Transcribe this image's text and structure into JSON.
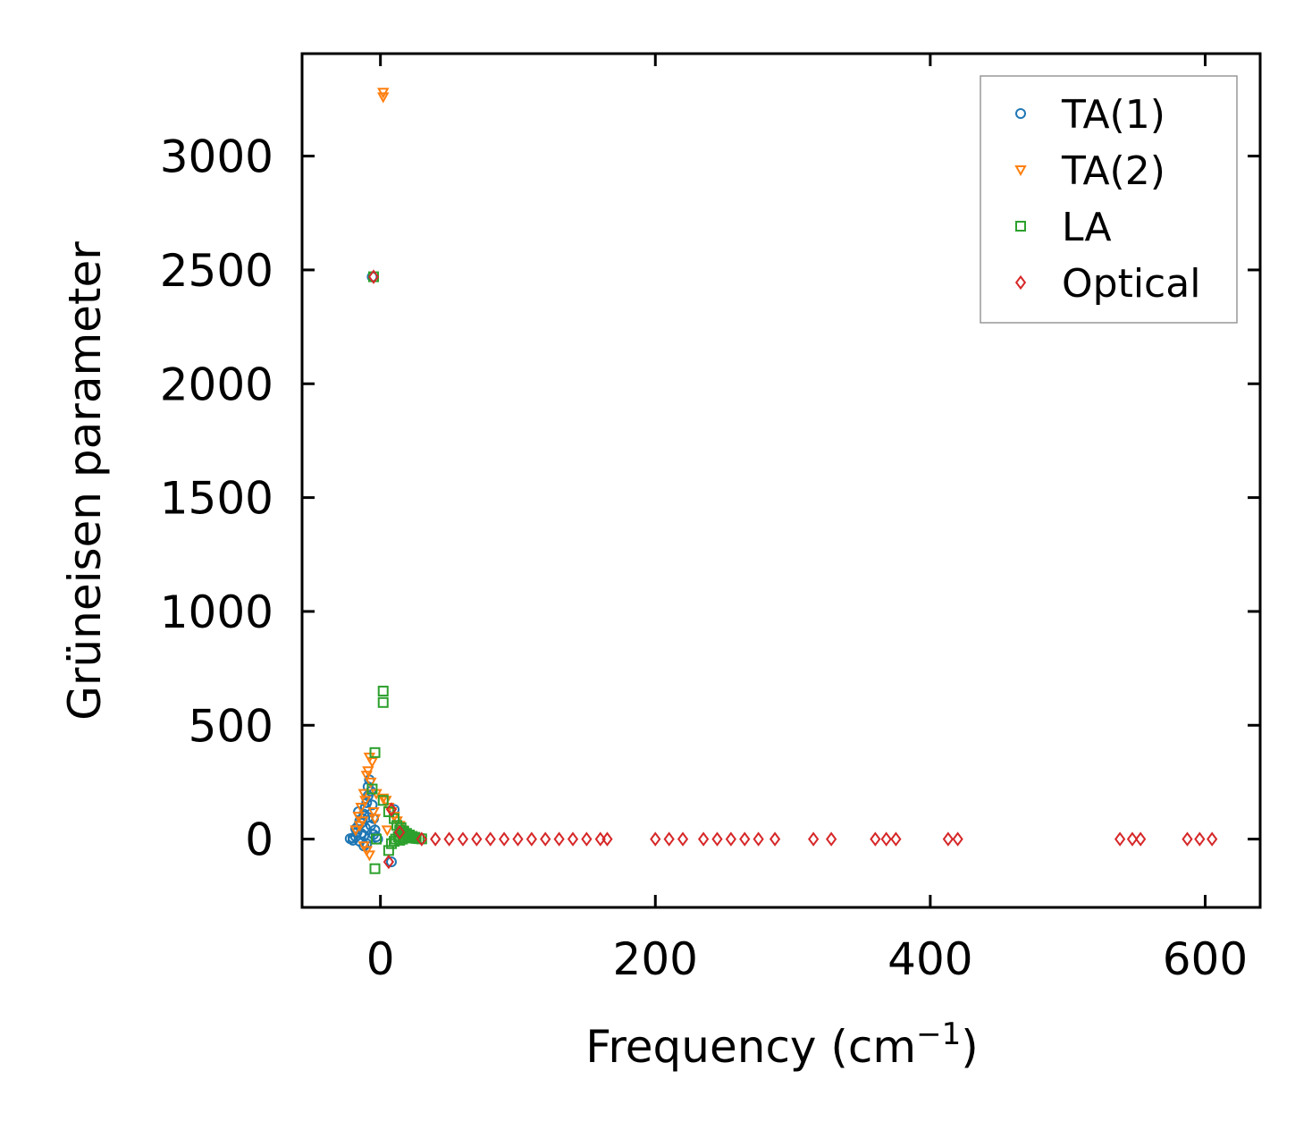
{
  "chart_data": {
    "type": "scatter",
    "title": "",
    "xlabel": "Frequency (cm",
    "xlabel_sup": "−1",
    "xlabel_suffix": ")",
    "ylabel": "Grüneisen parameter",
    "xlim": [
      -57,
      640
    ],
    "ylim": [
      -300,
      3450
    ],
    "xticks": [
      0,
      200,
      400,
      600
    ],
    "yticks": [
      0,
      500,
      1000,
      1500,
      2000,
      2500,
      3000
    ],
    "legend_position": "top-right",
    "grid": false,
    "series": [
      {
        "name": "TA(1)",
        "marker": "circle",
        "color": "#1f77b4",
        "points": [
          [
            -22,
            2
          ],
          [
            -20,
            5
          ],
          [
            -18,
            10
          ],
          [
            -17,
            30
          ],
          [
            -16,
            60
          ],
          [
            -15,
            80
          ],
          [
            -14,
            25
          ],
          [
            -13,
            90
          ],
          [
            -12,
            110
          ],
          [
            -11,
            140
          ],
          [
            -10,
            160
          ],
          [
            -9,
            190
          ],
          [
            -9,
            230
          ],
          [
            -8,
            260
          ],
          [
            -7,
            210
          ],
          [
            -6,
            150
          ],
          [
            -5,
            90
          ],
          [
            -4,
            40
          ],
          [
            -3,
            10
          ],
          [
            -2,
            0
          ],
          [
            -15,
            -10
          ],
          [
            -12,
            -30
          ],
          [
            -10,
            -20
          ],
          [
            -8,
            5
          ],
          [
            -20,
            -5
          ],
          [
            -18,
            45
          ],
          [
            -16,
            120
          ],
          [
            -14,
            70
          ],
          [
            -11,
            50
          ],
          [
            -6,
            2470
          ],
          [
            10,
            130
          ],
          [
            8,
            -100
          ],
          [
            -12,
            15
          ],
          [
            -9,
            95
          ],
          [
            -7,
            60
          ],
          [
            -5,
            20
          ]
        ]
      },
      {
        "name": "TA(2)",
        "marker": "triangle-down",
        "color": "#ff7f0e",
        "points": [
          [
            2,
            3280
          ],
          [
            2,
            3260
          ],
          [
            -8,
            360
          ],
          [
            -6,
            340
          ],
          [
            -9,
            300
          ],
          [
            -10,
            280
          ],
          [
            -7,
            250
          ],
          [
            -12,
            200
          ],
          [
            -11,
            170
          ],
          [
            -14,
            140
          ],
          [
            -16,
            100
          ],
          [
            -13,
            80
          ],
          [
            -5,
            120
          ],
          [
            -4,
            90
          ],
          [
            -15,
            60
          ],
          [
            -18,
            40
          ],
          [
            -12,
            -30
          ],
          [
            -10,
            -50
          ],
          [
            -8,
            -70
          ],
          [
            2,
            180
          ],
          [
            4,
            170
          ],
          [
            6,
            140
          ],
          [
            8,
            120
          ],
          [
            10,
            100
          ],
          [
            12,
            80
          ],
          [
            14,
            60
          ],
          [
            16,
            40
          ],
          [
            18,
            20
          ],
          [
            5,
            40
          ],
          [
            20,
            10
          ],
          [
            -3,
            200
          ]
        ]
      },
      {
        "name": "LA",
        "marker": "square",
        "color": "#2ca02c",
        "points": [
          [
            2,
            650
          ],
          [
            2,
            600
          ],
          [
            -4,
            380
          ],
          [
            -6,
            220
          ],
          [
            2,
            170
          ],
          [
            6,
            120
          ],
          [
            10,
            90
          ],
          [
            12,
            60
          ],
          [
            14,
            40
          ],
          [
            16,
            30
          ],
          [
            18,
            20
          ],
          [
            20,
            15
          ],
          [
            22,
            10
          ],
          [
            24,
            5
          ],
          [
            26,
            3
          ],
          [
            28,
            2
          ],
          [
            30,
            1
          ],
          [
            15,
            50
          ],
          [
            17,
            35
          ],
          [
            19,
            25
          ],
          [
            21,
            18
          ],
          [
            23,
            12
          ],
          [
            25,
            8
          ],
          [
            13,
            10
          ],
          [
            -4,
            -130
          ],
          [
            -3,
            0
          ],
          [
            6,
            -50
          ],
          [
            8,
            -20
          ],
          [
            10,
            -10
          ],
          [
            11,
            0
          ],
          [
            -5,
            2470
          ],
          [
            14,
            -5
          ],
          [
            16,
            0
          ],
          [
            18,
            5
          ],
          [
            20,
            8
          ]
        ]
      },
      {
        "name": "Optical",
        "marker": "diamond",
        "color": "#d62728",
        "points": [
          [
            30,
            0
          ],
          [
            40,
            0
          ],
          [
            50,
            0
          ],
          [
            60,
            0
          ],
          [
            70,
            0
          ],
          [
            80,
            0
          ],
          [
            90,
            0
          ],
          [
            100,
            0
          ],
          [
            110,
            0
          ],
          [
            120,
            0
          ],
          [
            130,
            0
          ],
          [
            140,
            0
          ],
          [
            150,
            0
          ],
          [
            160,
            0
          ],
          [
            165,
            0
          ],
          [
            200,
            0
          ],
          [
            210,
            0
          ],
          [
            220,
            0
          ],
          [
            235,
            0
          ],
          [
            245,
            0
          ],
          [
            255,
            0
          ],
          [
            265,
            0
          ],
          [
            275,
            0
          ],
          [
            287,
            0
          ],
          [
            315,
            0
          ],
          [
            328,
            0
          ],
          [
            360,
            0
          ],
          [
            368,
            0
          ],
          [
            375,
            0
          ],
          [
            413,
            0
          ],
          [
            420,
            0
          ],
          [
            538,
            0
          ],
          [
            547,
            0
          ],
          [
            553,
            0
          ],
          [
            587,
            0
          ],
          [
            596,
            0
          ],
          [
            605,
            0
          ],
          [
            8,
            130
          ],
          [
            6,
            -100
          ],
          [
            14,
            30
          ],
          [
            -5,
            2470
          ]
        ]
      }
    ]
  }
}
